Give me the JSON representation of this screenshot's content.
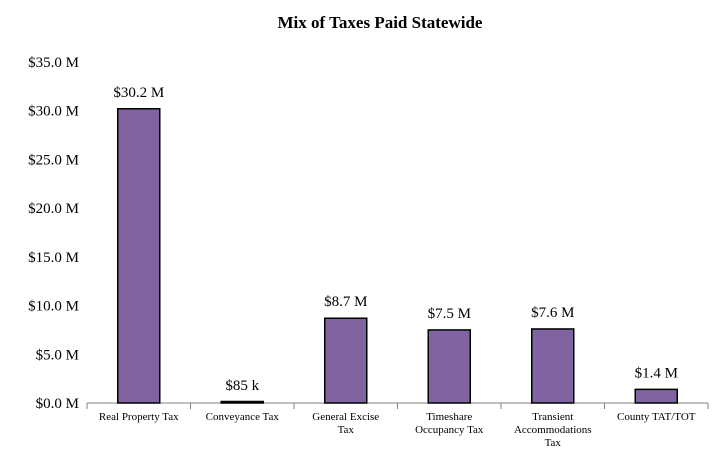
{
  "chart_data": {
    "type": "bar",
    "title": "Mix of Taxes Paid Statewide",
    "xlabel": "",
    "ylabel": "",
    "categories": [
      "Real Property Tax",
      "Conveyance Tax",
      "General Excise Tax",
      "Timeshare Occupancy Tax",
      "Transient Accommodations Tax",
      "County TAT/TOT"
    ],
    "category_lines": [
      [
        "Real Property Tax"
      ],
      [
        "Conveyance Tax"
      ],
      [
        "General Excise",
        "Tax"
      ],
      [
        "Timeshare",
        "Occupancy Tax"
      ],
      [
        "Transient",
        "Accommodations",
        "Tax"
      ],
      [
        "County TAT/TOT"
      ]
    ],
    "values": [
      30.2,
      0.085,
      8.7,
      7.5,
      7.6,
      1.4
    ],
    "value_unit": "$ millions",
    "data_labels": [
      "$30.2 M",
      "$85 k",
      "$8.7 M",
      "$7.5 M",
      "$7.6 M",
      "$1.4 M"
    ],
    "y_ticks": [
      0,
      5,
      10,
      15,
      20,
      25,
      30,
      35
    ],
    "y_tick_labels": [
      "$0.0 M",
      "$5.0 M",
      "$10.0 M",
      "$15.0 M",
      "$20.0 M",
      "$25.0 M",
      "$30.0 M",
      "$35.0 M"
    ],
    "ylim": [
      0,
      35
    ],
    "grid": false,
    "legend": "none",
    "colors": {
      "bar_fill": "#8064a2",
      "bar_stroke": "#000000",
      "axis": "#808080"
    }
  }
}
